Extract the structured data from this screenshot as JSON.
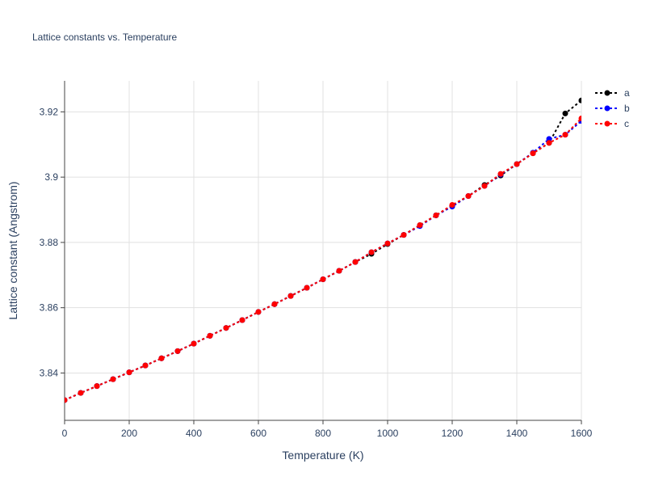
{
  "chart_data": {
    "type": "line",
    "title": "Lattice constants vs. Temperature",
    "xlabel": "Temperature (K)",
    "ylabel": "Lattice constant (Angstrom)",
    "xlim": [
      0,
      1600
    ],
    "ylim": [
      3.8255,
      3.9295
    ],
    "x_ticks": [
      0,
      200,
      400,
      600,
      800,
      1000,
      1200,
      1400,
      1600
    ],
    "x_tick_labels": [
      "0",
      "200",
      "400",
      "600",
      "800",
      "1000",
      "1200",
      "1400",
      "1600"
    ],
    "y_ticks": [
      3.84,
      3.86,
      3.88,
      3.9,
      3.92
    ],
    "y_tick_labels": [
      "3.84",
      "3.86",
      "3.88",
      "3.9",
      "3.92"
    ],
    "grid": true,
    "legend_position": "top-right",
    "x": [
      0,
      50,
      100,
      150,
      200,
      250,
      300,
      350,
      400,
      450,
      500,
      550,
      600,
      650,
      700,
      750,
      800,
      850,
      900,
      950,
      1000,
      1050,
      1100,
      1150,
      1200,
      1250,
      1300,
      1350,
      1400,
      1450,
      1500,
      1550,
      1600
    ],
    "series": [
      {
        "name": "a",
        "color": "#000000",
        "values": [
          3.8317,
          3.8339,
          3.836,
          3.8381,
          3.8402,
          3.8423,
          3.8445,
          3.8467,
          3.849,
          3.8514,
          3.8538,
          3.8562,
          3.8587,
          3.8611,
          3.8636,
          3.8661,
          3.8687,
          3.8713,
          3.874,
          3.8765,
          3.8795,
          3.8823,
          3.8853,
          3.8883,
          3.8912,
          3.8942,
          3.8976,
          3.9005,
          3.904,
          3.9073,
          3.9105,
          3.9195,
          3.9235
        ]
      },
      {
        "name": "b",
        "color": "#0000ff",
        "values": [
          3.8317,
          3.8339,
          3.836,
          3.8381,
          3.8402,
          3.8423,
          3.8445,
          3.8467,
          3.849,
          3.8514,
          3.8538,
          3.8562,
          3.8587,
          3.8611,
          3.8636,
          3.8661,
          3.8687,
          3.8713,
          3.874,
          3.877,
          3.8797,
          3.8823,
          3.885,
          3.8883,
          3.891,
          3.8942,
          3.8973,
          3.9008,
          3.904,
          3.9075,
          3.9117,
          3.913,
          3.9172
        ]
      },
      {
        "name": "c",
        "color": "#ff0000",
        "values": [
          3.8317,
          3.8339,
          3.836,
          3.8381,
          3.8402,
          3.8423,
          3.8445,
          3.8467,
          3.849,
          3.8514,
          3.8538,
          3.8562,
          3.8587,
          3.8611,
          3.8636,
          3.8661,
          3.8687,
          3.8713,
          3.874,
          3.877,
          3.8797,
          3.8823,
          3.8853,
          3.8883,
          3.8915,
          3.8942,
          3.8973,
          3.901,
          3.904,
          3.9073,
          3.9105,
          3.913,
          3.918
        ]
      }
    ]
  }
}
